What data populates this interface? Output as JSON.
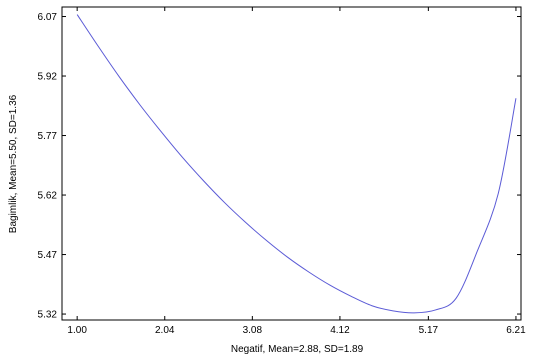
{
  "chart_data": {
    "type": "line",
    "title": "",
    "xlabel": "Negatif, Mean=2.88, SD=1.89",
    "ylabel": "Bagimlik, Mean=5.50, SD=1.36",
    "xlim": [
      0.82,
      6.27
    ],
    "ylim": [
      5.305,
      6.094
    ],
    "x_ticks": [
      "1.00",
      "2.04",
      "3.08",
      "4.12",
      "5.17",
      "6.21"
    ],
    "y_ticks": [
      "5.32",
      "5.47",
      "5.62",
      "5.77",
      "5.92",
      "6.07"
    ],
    "grid": false,
    "line_color": "#5b5bd6",
    "series": [
      {
        "x": [
          1.0,
          1.25,
          1.5,
          1.75,
          2.0,
          2.25,
          2.5,
          2.75,
          3.0,
          3.25,
          3.5,
          3.75,
          4.0,
          4.25,
          4.5,
          4.75,
          5.0,
          5.25,
          5.5,
          5.75,
          6.0,
          6.21
        ],
        "values": [
          6.075,
          5.995,
          5.918,
          5.846,
          5.779,
          5.715,
          5.656,
          5.601,
          5.551,
          5.505,
          5.463,
          5.426,
          5.393,
          5.365,
          5.341,
          5.328,
          5.323,
          5.33,
          5.36,
          5.478,
          5.624,
          5.864
        ]
      }
    ]
  }
}
